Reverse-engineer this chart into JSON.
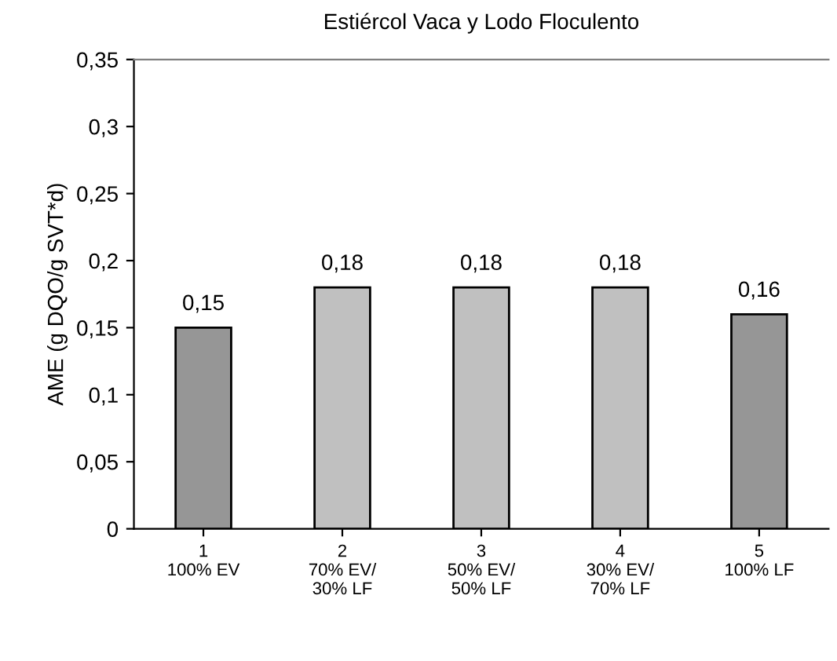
{
  "chart_data": {
    "type": "bar",
    "title": "Estiércol Vaca y Lodo Floculento",
    "ylabel": "AME (g DQO/g SVT*d)",
    "categories": [
      "1\n100% EV",
      "2\n70% EV/\n30% LF",
      "3\n50% EV/\n50% LF",
      "4\n30% EV/\n70% LF",
      "5\n100% LF"
    ],
    "values": [
      0.15,
      0.18,
      0.18,
      0.18,
      0.16
    ],
    "value_labels": [
      "0,15",
      "0,18",
      "0,18",
      "0,18",
      "0,16"
    ],
    "colors": [
      "#969696",
      "#c0c0c0",
      "#c0c0c0",
      "#c0c0c0",
      "#969696"
    ],
    "ylim": [
      0,
      0.35
    ],
    "yticks": [
      {
        "value": 0,
        "label": "0"
      },
      {
        "value": 0.05,
        "label": "0,05"
      },
      {
        "value": 0.1,
        "label": "0,1"
      },
      {
        "value": 0.15,
        "label": "0,15"
      },
      {
        "value": 0.2,
        "label": "0,2"
      },
      {
        "value": 0.25,
        "label": "0,25"
      },
      {
        "value": 0.3,
        "label": "0,3"
      },
      {
        "value": 0.35,
        "label": "0,35"
      }
    ],
    "grid": false,
    "legend": false
  }
}
